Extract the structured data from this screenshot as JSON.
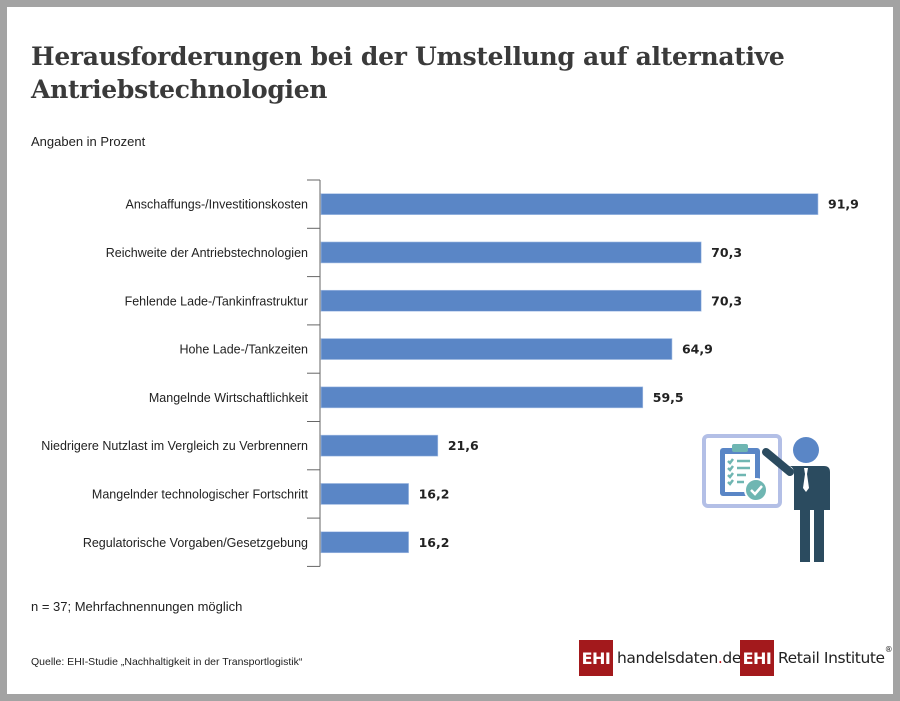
{
  "header": {
    "title": "Herausforderungen bei der Umstellung auf alternative Antriebstechnologien",
    "subtitle": "Angaben in Prozent"
  },
  "footer": {
    "note": "n = 37; Mehrfachnennungen möglich",
    "source": "Quelle: EHI-Studie „Nachhaltigkeit in der Transportlogistik“"
  },
  "logos": {
    "handelsdaten": {
      "box": "EHI",
      "name": "handelsdaten",
      "dot": ".",
      "tld": "de"
    },
    "retail": {
      "box": "EHI",
      "name": "Retail Institute",
      "mark": "®"
    }
  },
  "colors": {
    "bar": "#5a86c6",
    "frame": "#a3a3a3",
    "brand": "#a3191c"
  },
  "chart_data": {
    "type": "bar",
    "orientation": "horizontal",
    "title": "Herausforderungen bei der Umstellung auf alternative Antriebstechnologien",
    "xlabel": "",
    "ylabel": "",
    "unit": "Prozent",
    "xlim": [
      0,
      100
    ],
    "grid": false,
    "legend": "none",
    "categories": [
      "Anschaffungs-/Investitionskosten",
      "Reichweite der Antriebstechnologien",
      "Fehlende Lade-/Tankinfrastruktur",
      "Hohe Lade-/Tankzeiten",
      "Mangelnde Wirtschaftlichkeit",
      "Niedrigere Nutzlast im Vergleich zu Verbrennern",
      "Mangelnder technologischer Fortschritt",
      "Regulatorische Vorgaben/Gesetzgebung"
    ],
    "values": [
      91.9,
      70.3,
      70.3,
      64.9,
      59.5,
      21.6,
      16.2,
      16.2
    ],
    "value_labels": [
      "91,9",
      "70,3",
      "70,3",
      "64,9",
      "59,5",
      "21,6",
      "16,2",
      "16,2"
    ]
  }
}
